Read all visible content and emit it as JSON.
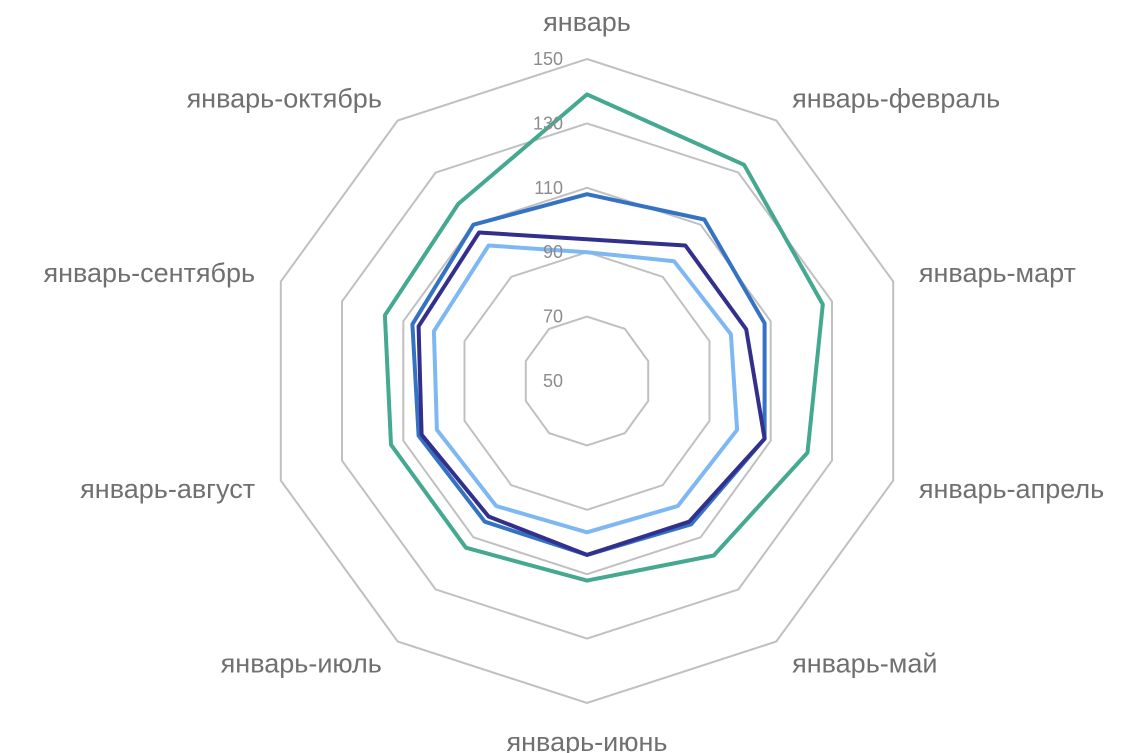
{
  "chart_data": {
    "type": "radar",
    "categories": [
      "январь",
      "январь-февраль",
      "январь-март",
      "январь-апрель",
      "январь-май",
      "январь-июнь",
      "январь-июль",
      "январь-август",
      "январь-сентябрь",
      "январь-октябрь"
    ],
    "r_ticks": [
      50,
      70,
      90,
      110,
      130,
      150
    ],
    "r_range": [
      50,
      150
    ],
    "grid": true,
    "series": [
      {
        "color": "#45a890",
        "values": [
          139,
          133,
          127,
          122,
          117,
          112,
          114,
          114,
          116,
          118
        ]
      },
      {
        "color": "#3473c4",
        "values": [
          108,
          112,
          108,
          108,
          105,
          104,
          104,
          105,
          107,
          110
        ]
      },
      {
        "color": "#332f8c",
        "values": [
          94,
          102,
          102,
          108,
          104,
          104,
          102,
          104,
          105,
          107
        ]
      },
      {
        "color": "#7db8f3",
        "values": [
          90,
          96,
          97,
          99,
          98,
          97,
          98,
          99,
          100,
          102
        ]
      }
    ],
    "colors": {
      "grid": "#c0c0c0"
    }
  }
}
